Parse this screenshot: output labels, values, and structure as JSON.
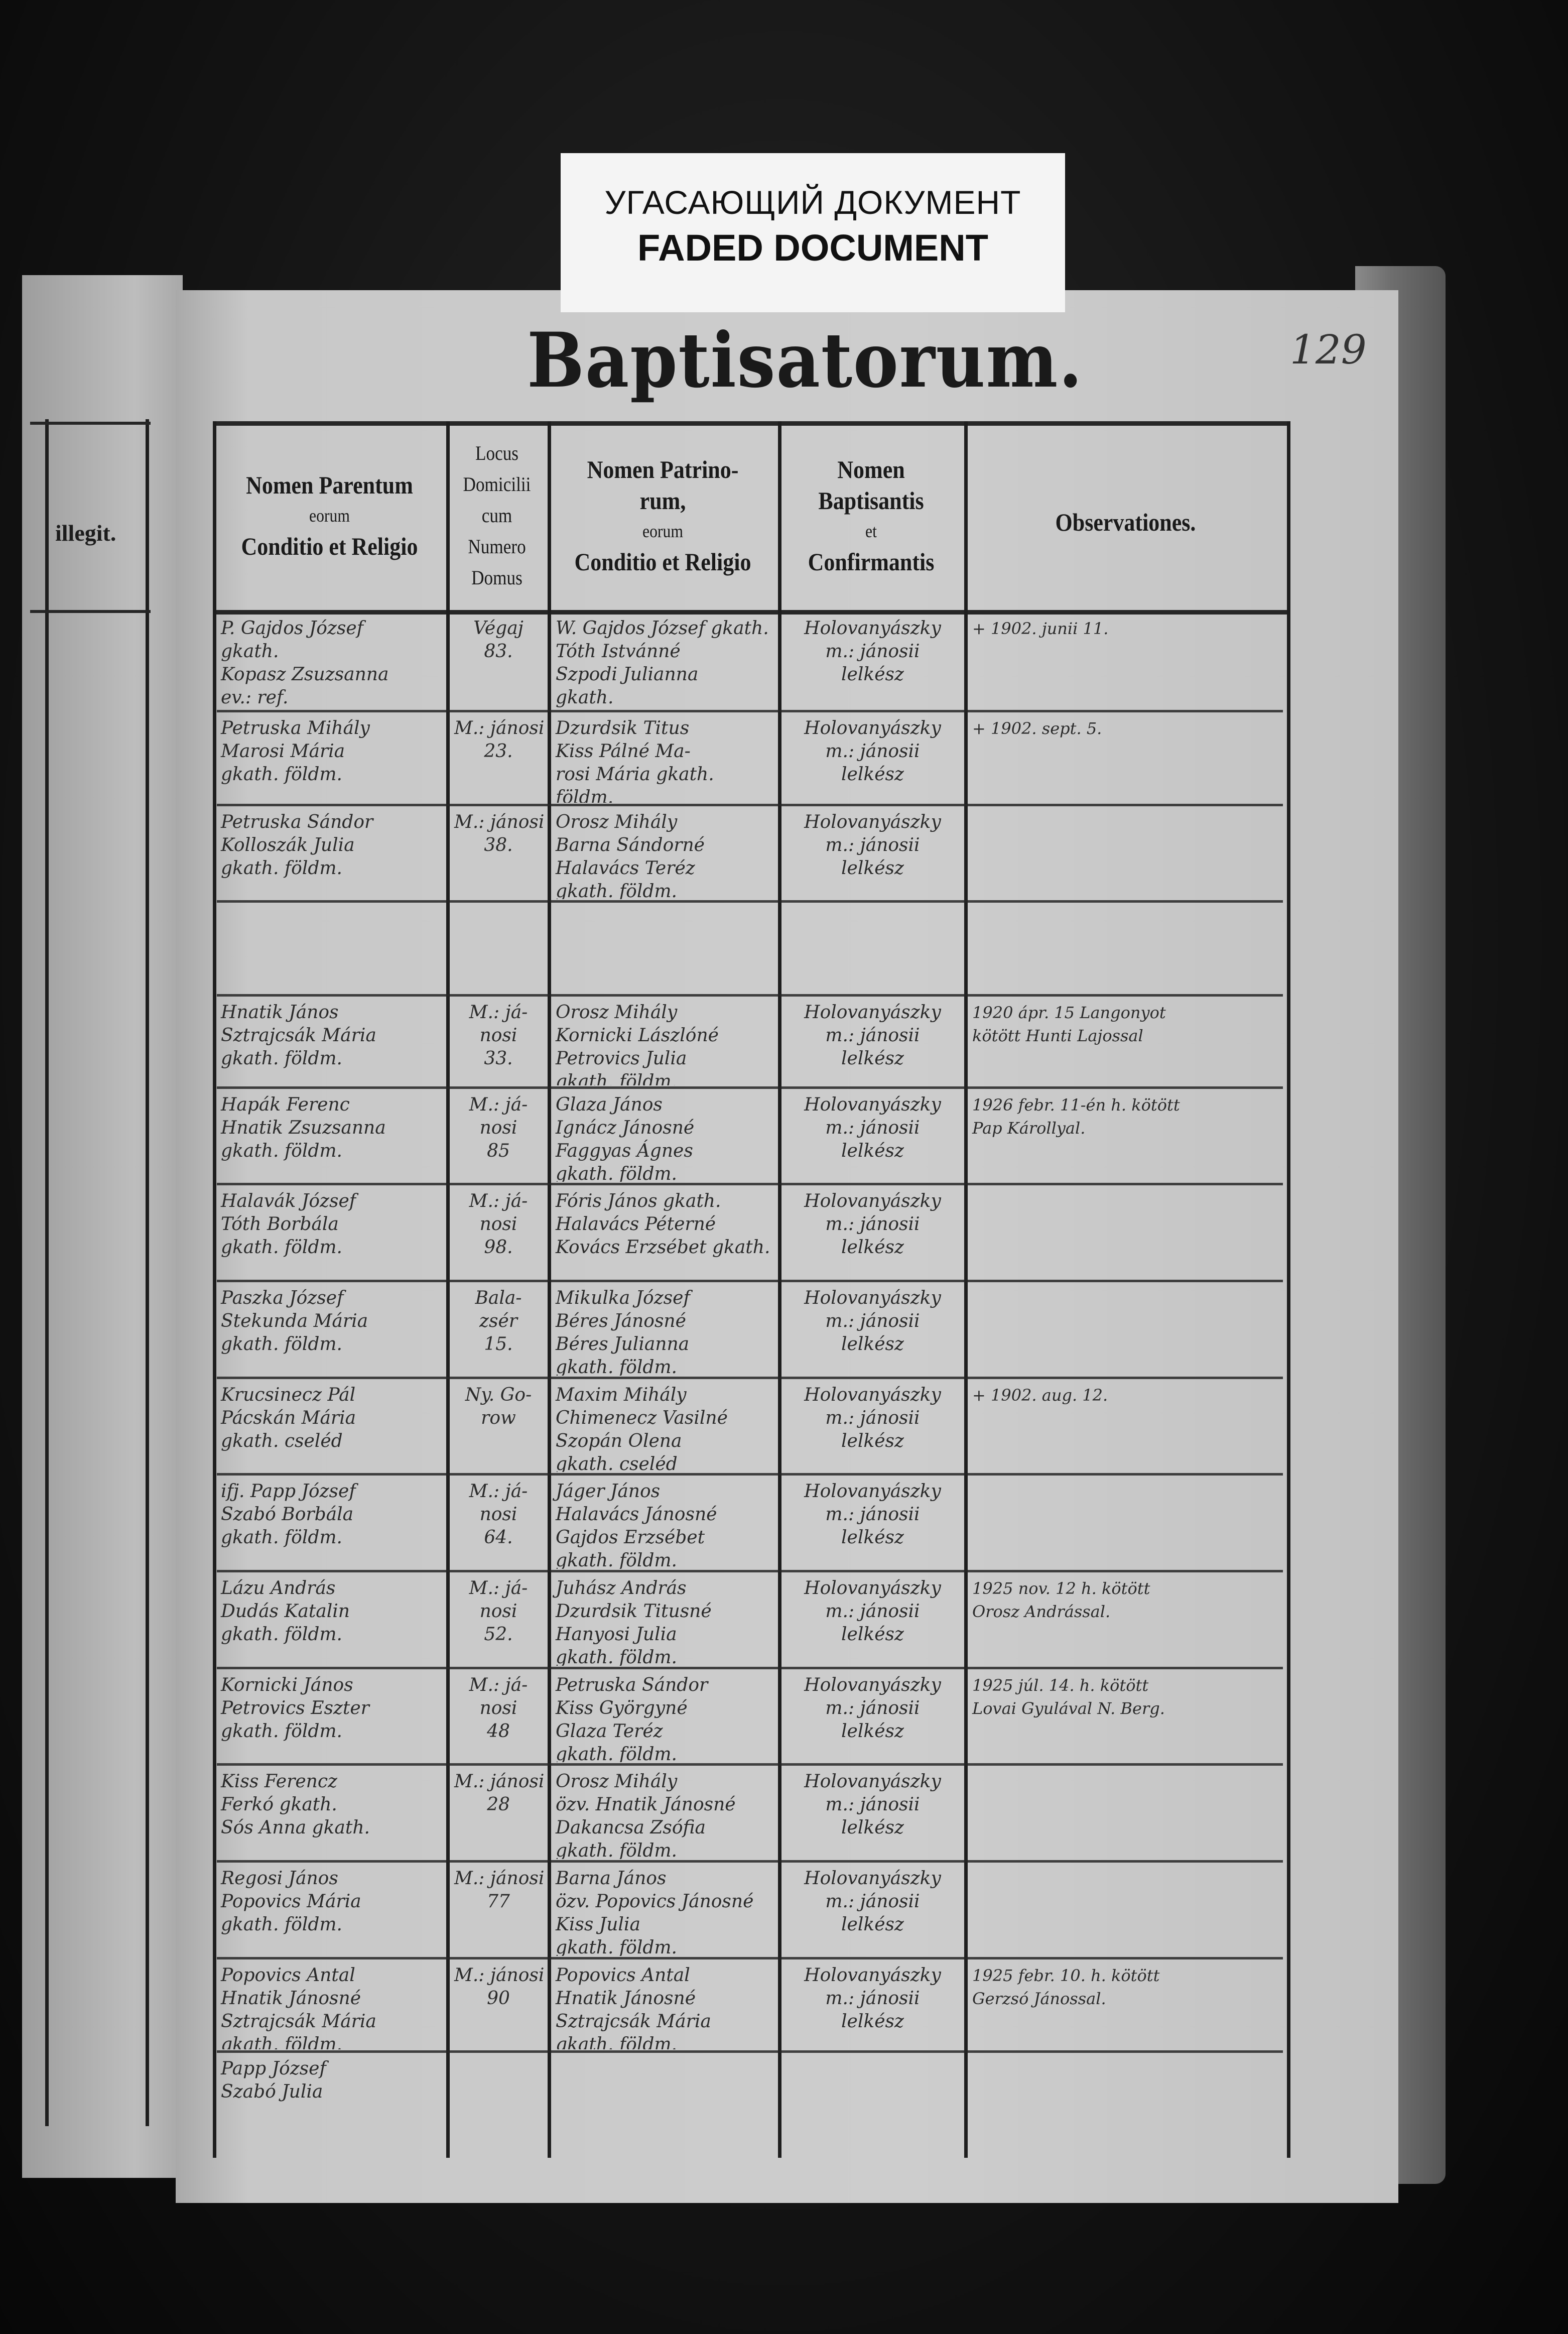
{
  "label": {
    "line1": "УГАСАЮЩИЙ ДОКУМЕНТ",
    "line2": "FADED DOCUMENT"
  },
  "page": {
    "title": "Baptisatorum.",
    "number": "129"
  },
  "left_page": {
    "column_header": "illegit."
  },
  "headers": {
    "parents": [
      "Nomen Parentum",
      "eorum",
      "Conditio et Religio"
    ],
    "domus": [
      "Locus",
      "Domicilii",
      "cum",
      "Numero",
      "Domus"
    ],
    "patrini": [
      "Nomen Patrino-",
      "rum,",
      "eorum",
      "Conditio et Religio"
    ],
    "baptisans": [
      "Nomen",
      "Baptisantis",
      "et",
      "Confirmantis"
    ],
    "observationes": "Observationes."
  },
  "rows": [
    {
      "parents": [
        "P. Gajdos József",
        "gkath.",
        "Kopasz Zsuzsanna",
        "ev.: ref."
      ],
      "domus": [
        "Végaj",
        "83."
      ],
      "patrini": [
        "W. Gajdos József gkath.",
        "Tóth Istvánné",
        "Szpodi Julianna",
        "gkath."
      ],
      "baptisans": [
        "Holovanyászky",
        "m.: jánosii",
        "lelkész"
      ],
      "obs": [
        "+ 1902. junii 11."
      ]
    },
    {
      "parents": [
        "Petruska Mihály",
        "Marosi Mária",
        "gkath. földm."
      ],
      "domus": [
        "M.: jánosi",
        "23."
      ],
      "patrini": [
        "Dzurdsik Titus",
        "Kiss Pálné Ma-",
        "rosi Mária gkath.",
        "földm."
      ],
      "baptisans": [
        "Holovanyászky",
        "m.: jánosii",
        "lelkész"
      ],
      "obs": [
        "+ 1902. sept. 5."
      ]
    },
    {
      "parents": [
        "Petruska Sándor",
        "Kolloszák Julia",
        "gkath. földm."
      ],
      "domus": [
        "M.: jánosi",
        "38."
      ],
      "patrini": [
        "Orosz Mihály",
        "Barna Sándorné",
        "Halavács Teréz",
        "gkath. földm."
      ],
      "baptisans": [
        "Holovanyászky",
        "m.: jánosii",
        "lelkész"
      ],
      "obs": []
    },
    {
      "parents": [],
      "domus": [],
      "patrini": [],
      "baptisans": [],
      "obs": []
    },
    {
      "parents": [
        "Hnatik János",
        "Sztrajcsák Mária",
        "gkath. földm."
      ],
      "domus": [
        "M.: já-",
        "nosi",
        "33."
      ],
      "patrini": [
        "Orosz Mihály",
        "Kornicki Lászlóné",
        "Petrovics Julia",
        "gkath. földm."
      ],
      "baptisans": [
        "Holovanyászky",
        "m.: jánosii",
        "lelkész"
      ],
      "obs": [
        "1920 ápr. 15 Langonyot",
        "kötött Hunti Lajossal"
      ]
    },
    {
      "parents": [
        "Hapák Ferenc",
        "Hnatik Zsuzsanna",
        "gkath. földm."
      ],
      "domus": [
        "M.: já-",
        "nosi",
        "85"
      ],
      "patrini": [
        "Glaza János",
        "Ignácz Jánosné",
        "Faggyas Ágnes",
        "gkath. földm."
      ],
      "baptisans": [
        "Holovanyászky",
        "m.: jánosii",
        "lelkész"
      ],
      "obs": [
        "1926 febr. 11-én h. kötött",
        "Pap Károllyal."
      ]
    },
    {
      "parents": [
        "Halavák József",
        "Tóth Borbála",
        "gkath. földm."
      ],
      "domus": [
        "M.: já-",
        "nosi",
        "98."
      ],
      "patrini": [
        "Fóris János gkath.",
        "Halavács Péterné",
        "Kovács Erzsébet gkath."
      ],
      "baptisans": [
        "Holovanyászky",
        "m.: jánosii",
        "lelkész"
      ],
      "obs": []
    },
    {
      "parents": [
        "Paszka József",
        "Stekunda Mária",
        "gkath. földm."
      ],
      "domus": [
        "Bala-",
        "zsér",
        "15."
      ],
      "patrini": [
        "Mikulka József",
        "Béres Jánosné",
        "Béres Julianna",
        "gkath. földm."
      ],
      "baptisans": [
        "Holovanyászky",
        "m.: jánosii",
        "lelkész"
      ],
      "obs": []
    },
    {
      "parents": [
        "Krucsinecz Pál",
        "Pácskán Mária",
        "gkath. cseléd"
      ],
      "domus": [
        "Ny. Go-",
        "row"
      ],
      "patrini": [
        "Maxim Mihály",
        "Chimenecz Vasilné",
        "Szopán Olena",
        "gkath. cseléd"
      ],
      "baptisans": [
        "Holovanyászky",
        "m.: jánosii",
        "lelkész"
      ],
      "obs": [
        "+ 1902. aug. 12."
      ]
    },
    {
      "parents": [
        "ifj. Papp József",
        "Szabó Borbála",
        "gkath. földm."
      ],
      "domus": [
        "M.: já-",
        "nosi",
        "64."
      ],
      "patrini": [
        "Jáger János",
        "Halavács Jánosné",
        "Gajdos Erzsébet",
        "gkath. földm."
      ],
      "baptisans": [
        "Holovanyászky",
        "m.: jánosii",
        "lelkész"
      ],
      "obs": []
    },
    {
      "parents": [
        "Lázu András",
        "Dudás Katalin",
        "gkath. földm."
      ],
      "domus": [
        "M.: já-",
        "nosi",
        "52."
      ],
      "patrini": [
        "Juhász András",
        "Dzurdsik Titusné",
        "Hanyosi Julia",
        "gkath. földm."
      ],
      "baptisans": [
        "Holovanyászky",
        "m.: jánosii",
        "lelkész"
      ],
      "obs": [
        "1925 nov. 12 h. kötött",
        "Orosz Andrással."
      ]
    },
    {
      "parents": [
        "Kornicki János",
        "Petrovics Eszter",
        "gkath. földm."
      ],
      "domus": [
        "M.: já-",
        "nosi",
        "48"
      ],
      "patrini": [
        "Petruska Sándor",
        "Kiss Györgyné",
        "Glaza Teréz",
        "gkath. földm."
      ],
      "baptisans": [
        "Holovanyászky",
        "m.: jánosii",
        "lelkész"
      ],
      "obs": [
        "1925 júl. 14. h. kötött",
        "Lovai Gyulával N. Berg."
      ]
    },
    {
      "parents": [
        "Kiss Ferencz",
        "Ferkó gkath.",
        "Sós Anna gkath."
      ],
      "domus": [
        "M.: jánosi",
        "28"
      ],
      "patrini": [
        "Orosz Mihály",
        "özv. Hnatik Jánosné",
        "Dakancsa Zsófia",
        "gkath. földm."
      ],
      "baptisans": [
        "Holovanyászky",
        "m.: jánosii",
        "lelkész"
      ],
      "obs": []
    },
    {
      "parents": [
        "Regosi János",
        "Popovics Mária",
        "gkath. földm."
      ],
      "domus": [
        "M.: jánosi",
        "77"
      ],
      "patrini": [
        "Barna János",
        "özv. Popovics Jánosné",
        "Kiss Julia",
        "gkath. földm."
      ],
      "baptisans": [
        "Holovanyászky",
        "m.: jánosii",
        "lelkész"
      ],
      "obs": []
    },
    {
      "parents": [
        "Popovics Antal",
        "Hnatik Jánosné",
        "Sztrajcsák Mária",
        "gkath. földm."
      ],
      "domus": [
        "M.: jánosi",
        "90"
      ],
      "patrini": [
        "Popovics Antal",
        "Hnatik Jánosné",
        "Sztrajcsák Mária",
        "gkath. földm."
      ],
      "baptisans": [
        "Holovanyászky",
        "m.: jánosii",
        "lelkész"
      ],
      "obs": [
        "1925 febr. 10. h. kötött",
        "Gerzsó Jánossal."
      ]
    },
    {
      "parents": [
        "Papp József",
        "Szabó Julia"
      ],
      "domus": [],
      "patrini": [],
      "baptisans": [],
      "obs": []
    }
  ]
}
